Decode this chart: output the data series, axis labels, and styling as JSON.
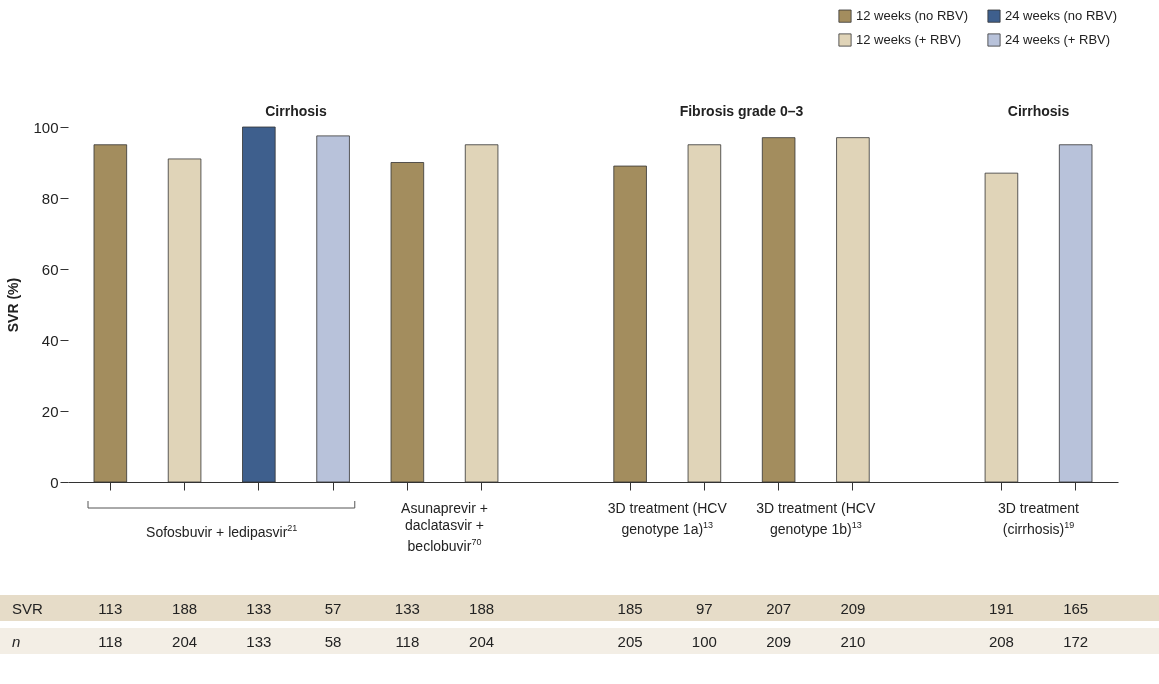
{
  "chart_data": {
    "type": "bar",
    "ylabel": "SVR (%)",
    "categories": [
      null,
      null,
      null,
      null,
      null,
      null,
      null,
      null,
      null,
      null,
      null,
      null,
      null,
      null
    ],
    "series": [
      {
        "name": "12 weeks (no RBV)",
        "color": "#a38d5e",
        "values": [
          95,
          null,
          null,
          null,
          90,
          null,
          null,
          89,
          null,
          97,
          null,
          null,
          null,
          null
        ]
      },
      {
        "name": "12 weeks (+ RBV)",
        "color": "#e0d4b8",
        "values": [
          null,
          91,
          null,
          null,
          null,
          95,
          null,
          null,
          95,
          null,
          97,
          null,
          87,
          null
        ]
      },
      {
        "name": "24 weeks (no RBV)",
        "color": "#3e5f8d",
        "values": [
          null,
          null,
          100,
          null,
          null,
          null,
          null,
          null,
          null,
          null,
          null,
          null,
          null,
          null
        ]
      },
      {
        "name": "24 weeks (+ RBV)",
        "color": "#b8c2da",
        "values": [
          null,
          null,
          null,
          97.5,
          null,
          null,
          null,
          null,
          null,
          null,
          null,
          null,
          null,
          95
        ]
      }
    ],
    "ylim": [
      0,
      100
    ],
    "yticks": [
      0,
      20,
      40,
      60,
      80,
      100
    ],
    "grid": false,
    "legend": "top right",
    "annotations": [
      "Cirrhosis",
      "Fibrosis grade 0–3",
      "Cirrhosis",
      "Sofosbuvir + ledipasvir$^{21}$",
      "Asunaprevir + daclatasvir + beclobuvir$^{70}$",
      "3D treatment (HCV genotype 1a)$^{13}$",
      "3D treatment (HCV genotype 1b)$^{13}$",
      "3D treatment (cirrhosis)$^{19}$",
      "SVR",
      "n",
      "113",
      "188",
      "133",
      "57",
      "133",
      "188",
      "185",
      "97",
      "207",
      "209",
      "191",
      "165",
      "118",
      "204",
      "133",
      "58",
      "118",
      "204",
      "205",
      "100",
      "209",
      "210",
      "208",
      "172"
    ]
  }
}
